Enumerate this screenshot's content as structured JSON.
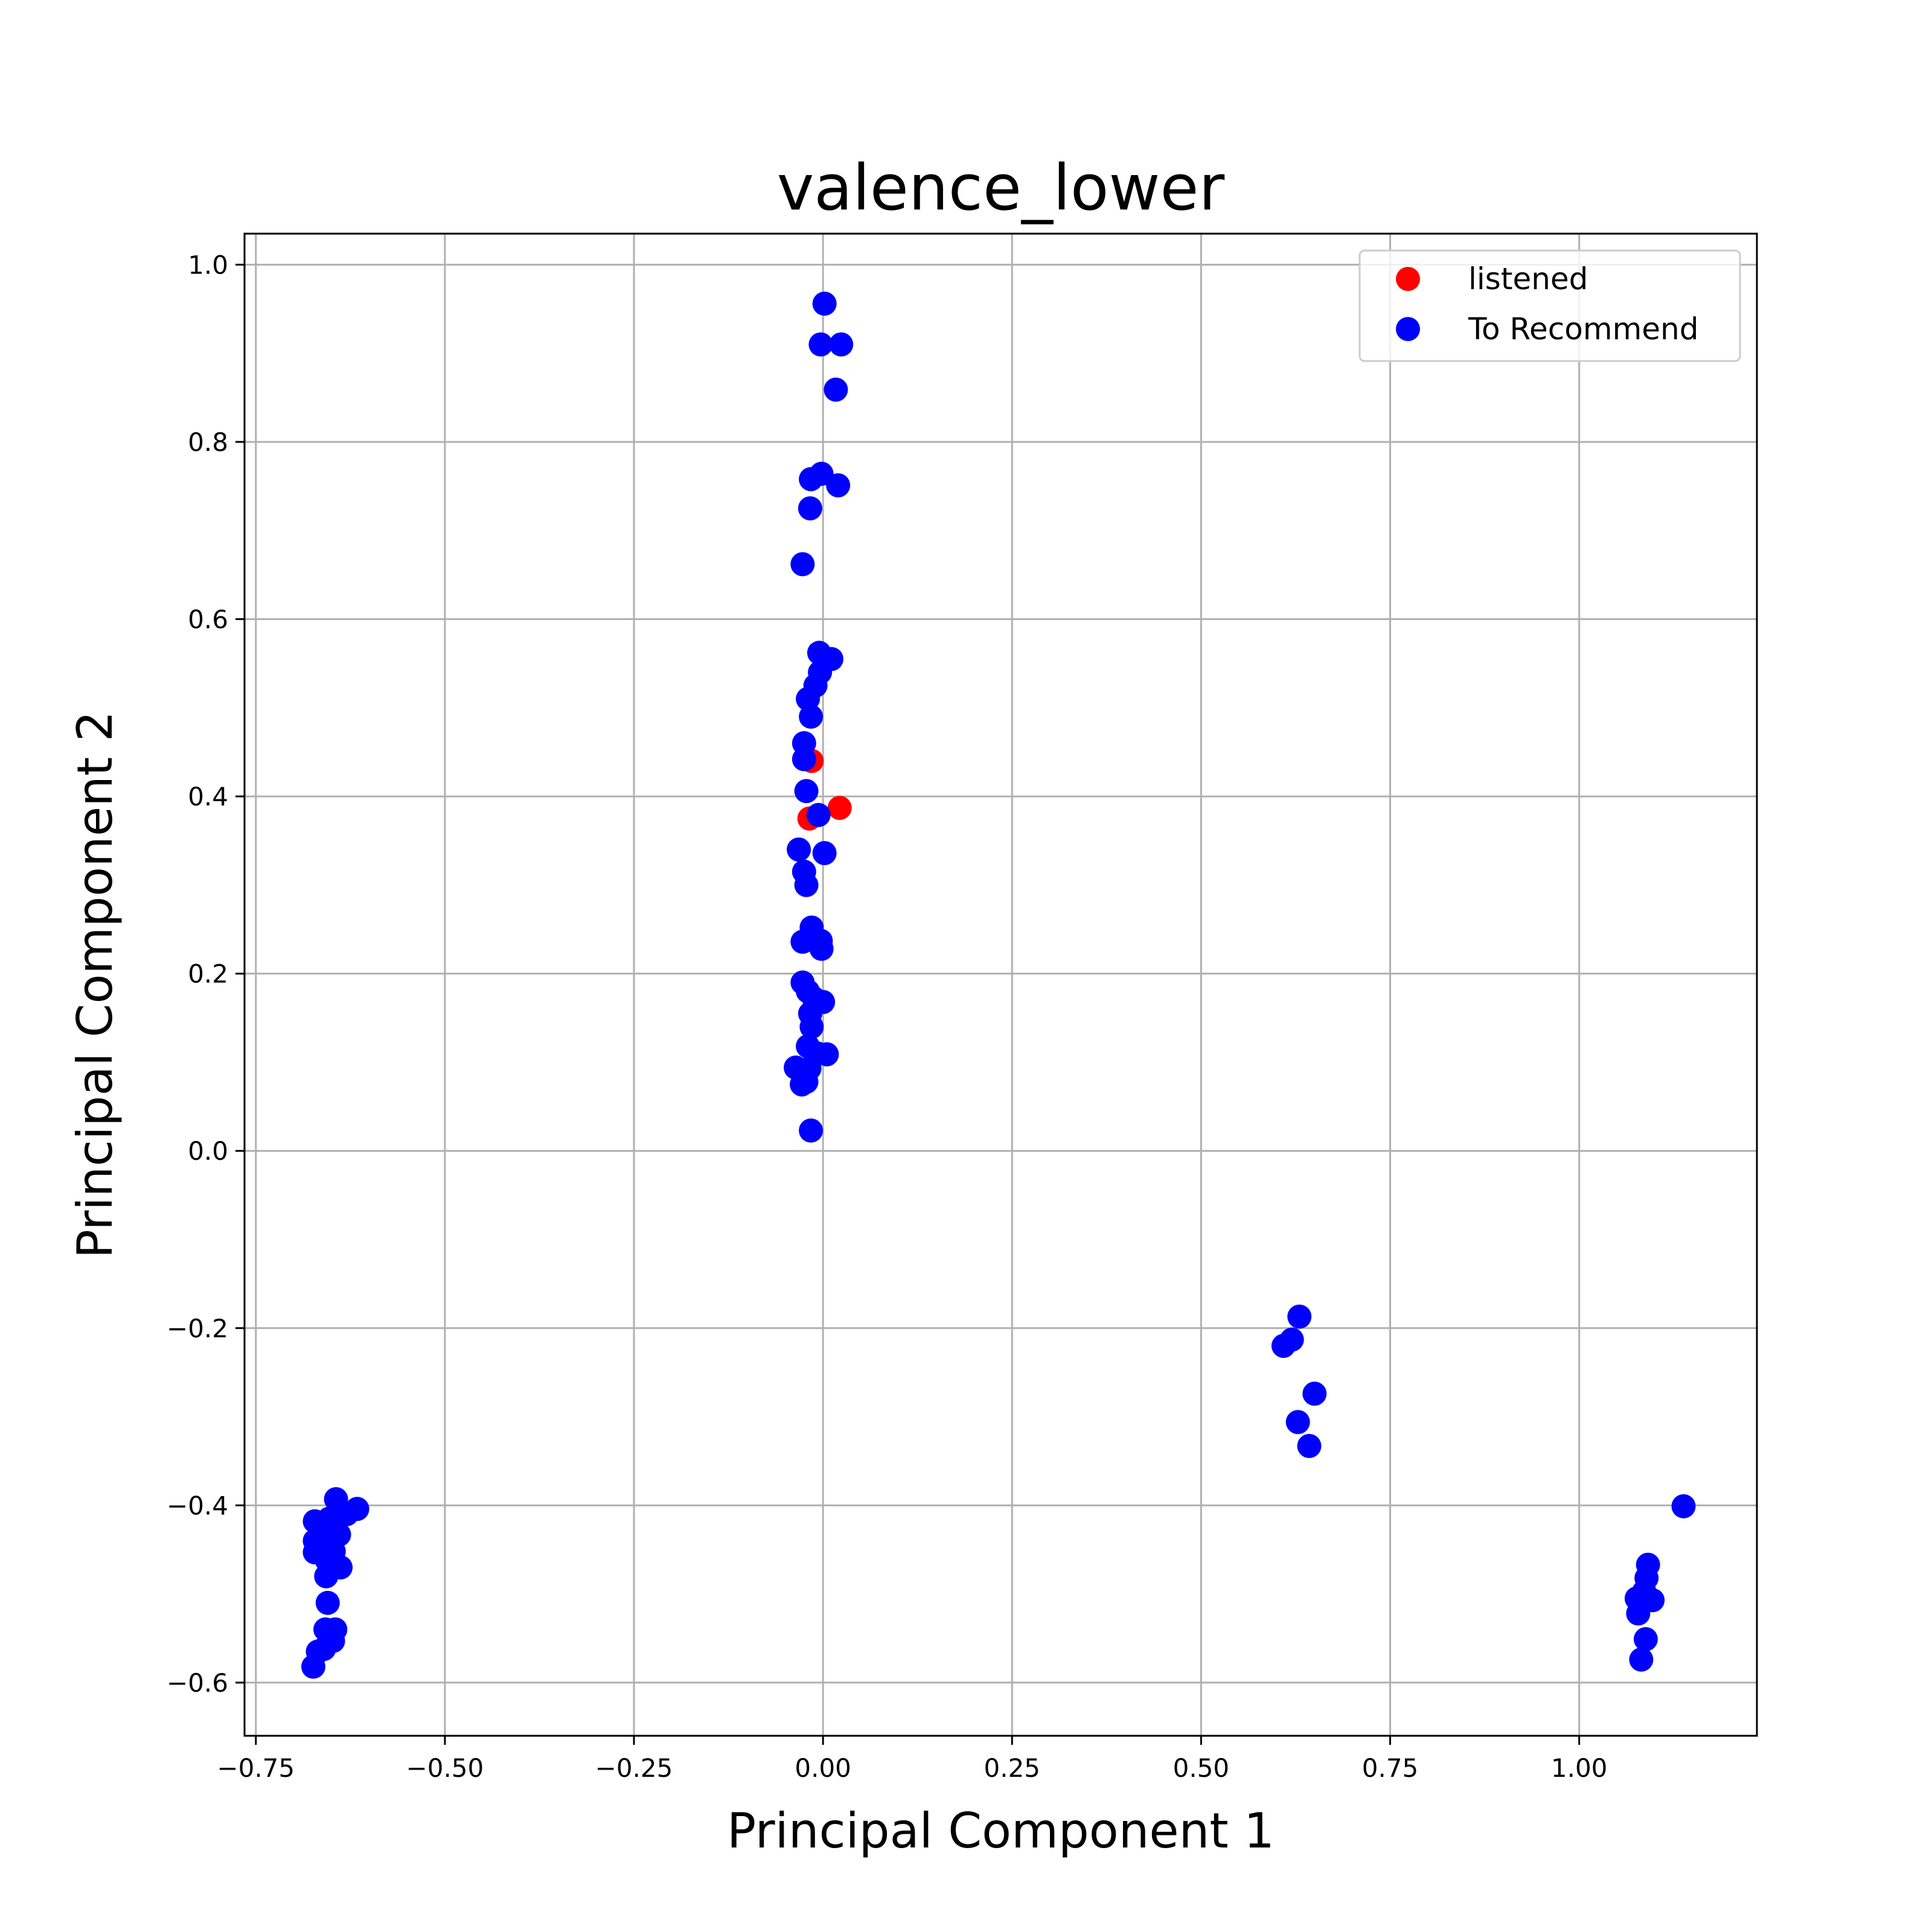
{
  "chart_data": {
    "type": "scatter",
    "title": "valence_lower",
    "xlabel": "Principal Component 1",
    "ylabel": "Principal Component 2",
    "xlim": [
      -0.765,
      1.235
    ],
    "ylim": [
      -0.66,
      1.035
    ],
    "xticks": [
      -0.75,
      -0.5,
      -0.25,
      0.0,
      0.25,
      0.5,
      0.75,
      1.0
    ],
    "xtick_labels": [
      "−0.75",
      "−0.50",
      "−0.25",
      "0.00",
      "0.25",
      "0.50",
      "0.75",
      "1.00"
    ],
    "yticks": [
      -0.6,
      -0.4,
      -0.2,
      0.0,
      0.2,
      0.4,
      0.6,
      0.8,
      1.0
    ],
    "ytick_labels": [
      "−0.6",
      "−0.4",
      "−0.2",
      "0.0",
      "0.2",
      "0.4",
      "0.6",
      "0.8",
      "1.0"
    ],
    "grid": true,
    "legend_position": "top-right",
    "series": [
      {
        "name": "listened",
        "color": "#ff0000",
        "points": [
          [
            -0.015,
            0.44
          ],
          [
            -0.018,
            0.375
          ],
          [
            0.022,
            0.387
          ]
        ]
      },
      {
        "name": "To Recommend",
        "color": "#0000ff",
        "points": [
          [
            0.002,
            0.956
          ],
          [
            -0.003,
            0.91
          ],
          [
            0.024,
            0.91
          ],
          [
            0.017,
            0.859
          ],
          [
            -0.002,
            0.764
          ],
          [
            -0.016,
            0.758
          ],
          [
            0.02,
            0.751
          ],
          [
            -0.017,
            0.725
          ],
          [
            -0.027,
            0.662
          ],
          [
            -0.005,
            0.562
          ],
          [
            0.011,
            0.555
          ],
          [
            -0.004,
            0.54
          ],
          [
            -0.01,
            0.525
          ],
          [
            -0.02,
            0.51
          ],
          [
            -0.016,
            0.49
          ],
          [
            -0.025,
            0.46
          ],
          [
            -0.025,
            0.442
          ],
          [
            -0.022,
            0.406
          ],
          [
            -0.006,
            0.379
          ],
          [
            -0.032,
            0.34
          ],
          [
            0.002,
            0.336
          ],
          [
            -0.025,
            0.315
          ],
          [
            -0.022,
            0.3
          ],
          [
            -0.015,
            0.252
          ],
          [
            -0.027,
            0.236
          ],
          [
            -0.003,
            0.237
          ],
          [
            -0.002,
            0.228
          ],
          [
            -0.027,
            0.19
          ],
          [
            -0.02,
            0.18
          ],
          [
            -0.012,
            0.172
          ],
          [
            0.0,
            0.168
          ],
          [
            -0.017,
            0.155
          ],
          [
            -0.015,
            0.14
          ],
          [
            -0.02,
            0.118
          ],
          [
            -0.008,
            0.11
          ],
          [
            0.005,
            0.109
          ],
          [
            -0.036,
            0.094
          ],
          [
            -0.018,
            0.093
          ],
          [
            -0.028,
            0.075
          ],
          [
            -0.022,
            0.078
          ],
          [
            -0.016,
            0.023
          ],
          [
            0.63,
            -0.187
          ],
          [
            0.62,
            -0.213
          ],
          [
            0.609,
            -0.22
          ],
          [
            0.65,
            -0.274
          ],
          [
            0.628,
            -0.306
          ],
          [
            0.643,
            -0.333
          ],
          [
            1.138,
            -0.401
          ],
          [
            1.091,
            -0.467
          ],
          [
            1.089,
            -0.482
          ],
          [
            1.086,
            -0.497
          ],
          [
            1.076,
            -0.505
          ],
          [
            1.097,
            -0.507
          ],
          [
            1.078,
            -0.522
          ],
          [
            1.088,
            -0.551
          ],
          [
            1.082,
            -0.574
          ],
          [
            -0.644,
            -0.393
          ],
          [
            -0.616,
            -0.404
          ],
          [
            -0.63,
            -0.41
          ],
          [
            -0.653,
            -0.415
          ],
          [
            -0.672,
            -0.418
          ],
          [
            -0.658,
            -0.425
          ],
          [
            -0.64,
            -0.433
          ],
          [
            -0.672,
            -0.44
          ],
          [
            -0.66,
            -0.447
          ],
          [
            -0.647,
            -0.452
          ],
          [
            -0.672,
            -0.453
          ],
          [
            -0.656,
            -0.462
          ],
          [
            -0.638,
            -0.47
          ],
          [
            -0.657,
            -0.48
          ],
          [
            -0.655,
            -0.51
          ],
          [
            -0.645,
            -0.54
          ],
          [
            -0.658,
            -0.54
          ],
          [
            -0.648,
            -0.553
          ],
          [
            -0.66,
            -0.562
          ],
          [
            -0.668,
            -0.565
          ],
          [
            -0.674,
            -0.582
          ]
        ]
      }
    ]
  }
}
